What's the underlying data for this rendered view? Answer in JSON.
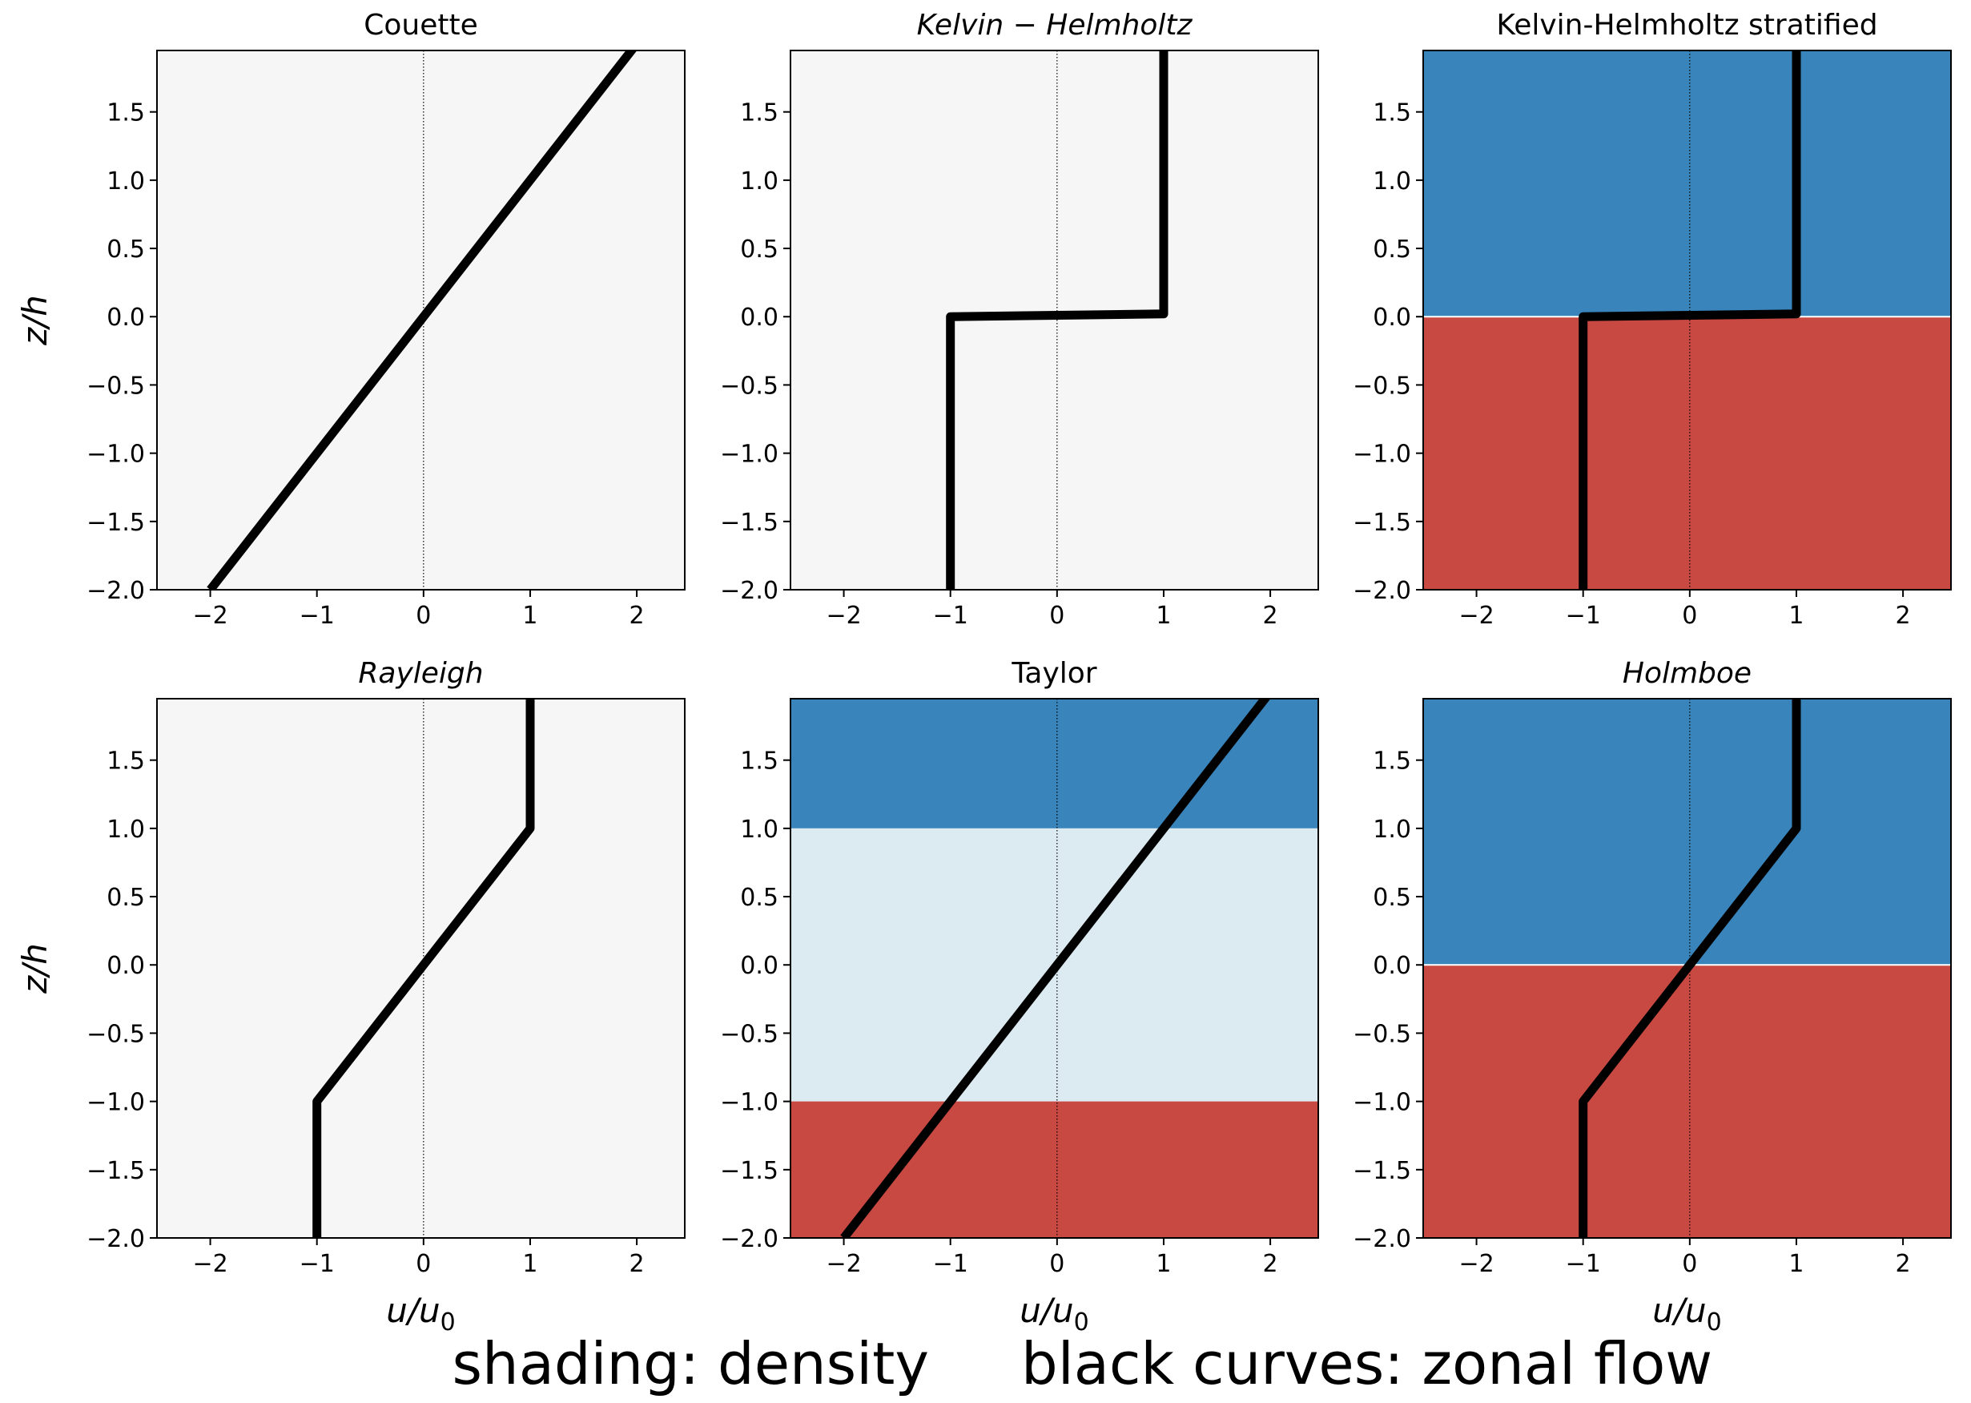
{
  "figure": {
    "caption_left": "shading: density",
    "caption_right": "black curves: zonal flow",
    "background": "#ffffff"
  },
  "colors": {
    "neutral_bg": "#f5f6f5",
    "blue": "#3884bb",
    "light_blue": "#dceaf2",
    "red": "#c84842",
    "curve": "#000000"
  },
  "chart_data": [
    {
      "type": "line",
      "title": "Couette",
      "title_italic": false,
      "xlabel": "",
      "ylabel": "z/h",
      "xlim": [
        -2.5,
        2.45
      ],
      "ylim": [
        -2.0,
        1.95
      ],
      "xticks": [
        -2,
        -1,
        0,
        1,
        2
      ],
      "yticks": [
        -2.0,
        -1.5,
        -1.0,
        -0.5,
        0.0,
        0.5,
        1.0,
        1.5
      ],
      "shading": [
        {
          "z_from": -2.0,
          "z_to": 1.95,
          "color": "neutral_bg"
        }
      ],
      "series": [
        {
          "x": [
            -2,
            2
          ],
          "y": [
            -2.0,
            2.0
          ]
        }
      ]
    },
    {
      "type": "line",
      "title": "Kelvin − Helmholtz",
      "title_italic": true,
      "xlabel": "",
      "ylabel": "",
      "xlim": [
        -2.5,
        2.45
      ],
      "ylim": [
        -2.0,
        1.95
      ],
      "xticks": [
        -2,
        -1,
        0,
        1,
        2
      ],
      "yticks": [
        -2.0,
        -1.5,
        -1.0,
        -0.5,
        0.0,
        0.5,
        1.0,
        1.5
      ],
      "shading": [
        {
          "z_from": -2.0,
          "z_to": 1.95,
          "color": "neutral_bg"
        }
      ],
      "series": [
        {
          "x": [
            -1,
            -1,
            1,
            1
          ],
          "y": [
            -2.0,
            0.0,
            0.02,
            2.0
          ]
        }
      ]
    },
    {
      "type": "line",
      "title": "Kelvin-Helmholtz stratified",
      "title_italic": false,
      "xlabel": "",
      "ylabel": "",
      "xlim": [
        -2.5,
        2.45
      ],
      "ylim": [
        -2.0,
        1.95
      ],
      "xticks": [
        -2,
        -1,
        0,
        1,
        2
      ],
      "yticks": [
        -2.0,
        -1.5,
        -1.0,
        -0.5,
        0.0,
        0.5,
        1.0,
        1.5
      ],
      "shading": [
        {
          "z_from": 0.0,
          "z_to": 1.95,
          "color": "blue"
        },
        {
          "z_from": -2.0,
          "z_to": 0.0,
          "color": "red"
        }
      ],
      "interfaces": [
        0.0
      ],
      "series": [
        {
          "x": [
            -1,
            -1,
            1,
            1
          ],
          "y": [
            -2.0,
            0.0,
            0.02,
            2.0
          ]
        }
      ]
    },
    {
      "type": "line",
      "title": "Rayleigh",
      "title_italic": true,
      "xlabel": "u/u0",
      "ylabel": "z/h",
      "xlim": [
        -2.5,
        2.45
      ],
      "ylim": [
        -2.0,
        1.95
      ],
      "xticks": [
        -2,
        -1,
        0,
        1,
        2
      ],
      "yticks": [
        -2.0,
        -1.5,
        -1.0,
        -0.5,
        0.0,
        0.5,
        1.0,
        1.5
      ],
      "shading": [
        {
          "z_from": -2.0,
          "z_to": 1.95,
          "color": "neutral_bg"
        }
      ],
      "series": [
        {
          "x": [
            -1,
            -1,
            1,
            1
          ],
          "y": [
            -2.0,
            -1.0,
            1.0,
            2.0
          ]
        }
      ]
    },
    {
      "type": "line",
      "title": "Taylor",
      "title_italic": false,
      "xlabel": "u/u0",
      "ylabel": "",
      "xlim": [
        -2.5,
        2.45
      ],
      "ylim": [
        -2.0,
        1.95
      ],
      "xticks": [
        -2,
        -1,
        0,
        1,
        2
      ],
      "yticks": [
        -2.0,
        -1.5,
        -1.0,
        -0.5,
        0.0,
        0.5,
        1.0,
        1.5
      ],
      "shading": [
        {
          "z_from": 1.0,
          "z_to": 1.95,
          "color": "blue"
        },
        {
          "z_from": -1.0,
          "z_to": 1.0,
          "color": "light_blue"
        },
        {
          "z_from": -2.0,
          "z_to": -1.0,
          "color": "red"
        }
      ],
      "series": [
        {
          "x": [
            -2,
            2
          ],
          "y": [
            -2.0,
            2.0
          ]
        }
      ]
    },
    {
      "type": "line",
      "title": "Holmboe",
      "title_italic": true,
      "xlabel": "u/u0",
      "ylabel": "",
      "xlim": [
        -2.5,
        2.45
      ],
      "ylim": [
        -2.0,
        1.95
      ],
      "xticks": [
        -2,
        -1,
        0,
        1,
        2
      ],
      "yticks": [
        -2.0,
        -1.5,
        -1.0,
        -0.5,
        0.0,
        0.5,
        1.0,
        1.5
      ],
      "shading": [
        {
          "z_from": 0.0,
          "z_to": 1.95,
          "color": "blue"
        },
        {
          "z_from": -2.0,
          "z_to": 0.0,
          "color": "red"
        }
      ],
      "interfaces": [
        0.0
      ],
      "series": [
        {
          "x": [
            -1,
            -1,
            1,
            1
          ],
          "y": [
            -2.0,
            -1.0,
            1.0,
            2.0
          ]
        }
      ]
    }
  ]
}
